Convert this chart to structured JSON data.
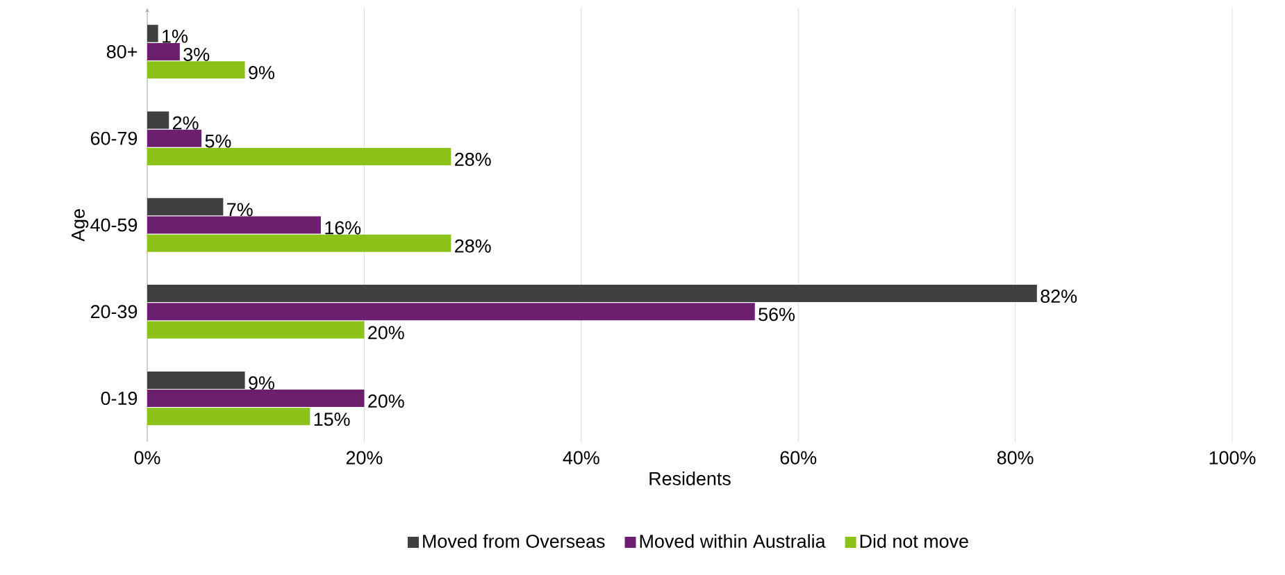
{
  "chart_data": {
    "type": "bar",
    "orientation": "horizontal",
    "xlabel": "Residents",
    "ylabel": "Age",
    "categories": [
      "80+",
      "60-79",
      "40-59",
      "20-39",
      "0-19"
    ],
    "series": [
      {
        "name": "Moved from Overseas",
        "color": "#404040",
        "values": [
          1,
          2,
          7,
          82,
          9
        ],
        "value_labels": [
          "1%",
          "2%",
          "7%",
          "82%",
          "9%"
        ]
      },
      {
        "name": "Moved within Australia",
        "color": "#6b1f6e",
        "values": [
          3,
          5,
          16,
          56,
          20
        ],
        "value_labels": [
          "3%",
          "5%",
          "16%",
          "56%",
          "20%"
        ]
      },
      {
        "name": "Did not move",
        "color": "#8cc21a",
        "values": [
          9,
          28,
          28,
          20,
          15
        ],
        "value_labels": [
          "9%",
          "28%",
          "28%",
          "20%",
          "15%"
        ]
      }
    ],
    "xlim": [
      0,
      100
    ],
    "xticks": [
      {
        "value": 0,
        "label": "0%"
      },
      {
        "value": 20,
        "label": "20%"
      },
      {
        "value": 40,
        "label": "40%"
      },
      {
        "value": 60,
        "label": "60%"
      },
      {
        "value": 80,
        "label": "80%"
      },
      {
        "value": 100,
        "label": "100%"
      }
    ],
    "grid": "x",
    "legend": "bottom"
  }
}
